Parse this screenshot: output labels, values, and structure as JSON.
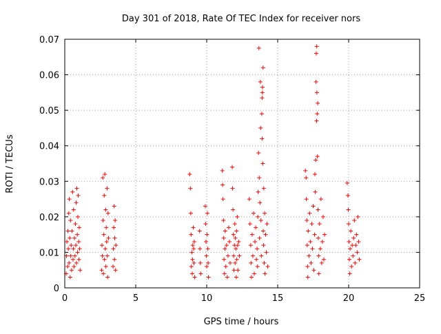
{
  "chart_data": {
    "type": "scatter",
    "title": "Day 301 of 2018, Rate Of TEC Index for receiver nors",
    "xlabel": "GPS time / hours",
    "ylabel": "ROTI / TECUs",
    "xlim": [
      0,
      25
    ],
    "ylim": [
      0,
      0.07
    ],
    "grid": true,
    "marker": "+",
    "x_ticks": [
      0,
      5,
      10,
      15,
      20,
      25
    ],
    "x_tick_labels": [
      "0",
      "5",
      "10",
      "15",
      "20",
      "25"
    ],
    "y_ticks": [
      0,
      0.01,
      0.02,
      0.03,
      0.04,
      0.05,
      0.06,
      0.07
    ],
    "y_tick_labels": [
      "0",
      "0.01",
      "0.02",
      "0.03",
      "0.04",
      "0.05",
      "0.06",
      "0.07"
    ],
    "series": [
      {
        "name": "ROTI",
        "color": "#ff0000",
        "points": [
          [
            0.1,
            0.004
          ],
          [
            0.12,
            0.009
          ],
          [
            0.15,
            0.013
          ],
          [
            0.2,
            0.006
          ],
          [
            0.22,
            0.016
          ],
          [
            0.25,
            0.011
          ],
          [
            0.28,
            0.021
          ],
          [
            0.3,
            0.007
          ],
          [
            0.32,
            0.025
          ],
          [
            0.35,
            0.014
          ],
          [
            0.38,
            0.003
          ],
          [
            0.4,
            0.019
          ],
          [
            0.42,
            0.009
          ],
          [
            0.45,
            0.012
          ],
          [
            0.48,
            0.005
          ],
          [
            0.5,
            0.016
          ],
          [
            0.55,
            0.027
          ],
          [
            0.58,
            0.008
          ],
          [
            0.6,
            0.011
          ],
          [
            0.62,
            0.022
          ],
          [
            0.65,
            0.006
          ],
          [
            0.68,
            0.014
          ],
          [
            0.72,
            0.009
          ],
          [
            0.75,
            0.018
          ],
          [
            0.78,
            0.012
          ],
          [
            0.8,
            0.024
          ],
          [
            0.82,
            0.007
          ],
          [
            0.85,
            0.028
          ],
          [
            0.88,
            0.015
          ],
          [
            0.9,
            0.01
          ],
          [
            0.92,
            0.02
          ],
          [
            0.95,
            0.026
          ],
          [
            0.98,
            0.013
          ],
          [
            1.0,
            0.008
          ],
          [
            1.02,
            0.017
          ],
          [
            1.05,
            0.011
          ],
          [
            1.08,
            0.005
          ],
          [
            2.6,
            0.005
          ],
          [
            2.62,
            0.012
          ],
          [
            2.65,
            0.009
          ],
          [
            2.68,
            0.031
          ],
          [
            2.7,
            0.019
          ],
          [
            2.72,
            0.004
          ],
          [
            2.75,
            0.015
          ],
          [
            2.78,
            0.026
          ],
          [
            2.8,
            0.008
          ],
          [
            2.82,
            0.032
          ],
          [
            2.85,
            0.011
          ],
          [
            2.88,
            0.022
          ],
          [
            2.9,
            0.006
          ],
          [
            2.92,
            0.017
          ],
          [
            2.95,
            0.013
          ],
          [
            2.98,
            0.028
          ],
          [
            3.0,
            0.009
          ],
          [
            3.02,
            0.003
          ],
          [
            3.05,
            0.021
          ],
          [
            3.08,
            0.014
          ],
          [
            3.4,
            0.006
          ],
          [
            3.42,
            0.011
          ],
          [
            3.45,
            0.017
          ],
          [
            3.48,
            0.023
          ],
          [
            3.5,
            0.008
          ],
          [
            3.52,
            0.014
          ],
          [
            3.55,
            0.019
          ],
          [
            3.58,
            0.005
          ],
          [
            3.6,
            0.012
          ],
          [
            8.8,
            0.032
          ],
          [
            8.85,
            0.028
          ],
          [
            8.88,
            0.021
          ],
          [
            8.9,
            0.015
          ],
          [
            8.92,
            0.006
          ],
          [
            8.95,
            0.01
          ],
          [
            8.98,
            0.004
          ],
          [
            9.0,
            0.008
          ],
          [
            9.02,
            0.012
          ],
          [
            9.05,
            0.017
          ],
          [
            9.08,
            0.011
          ],
          [
            9.1,
            0.007
          ],
          [
            9.12,
            0.013
          ],
          [
            9.15,
            0.003
          ],
          [
            9.5,
            0.016
          ],
          [
            9.52,
            0.011
          ],
          [
            9.55,
            0.007
          ],
          [
            9.58,
            0.004
          ],
          [
            9.9,
            0.023
          ],
          [
            9.92,
            0.018
          ],
          [
            9.95,
            0.013
          ],
          [
            9.98,
            0.009
          ],
          [
            10.0,
            0.006
          ],
          [
            10.02,
            0.015
          ],
          [
            10.05,
            0.021
          ],
          [
            10.08,
            0.011
          ],
          [
            10.1,
            0.007
          ],
          [
            10.12,
            0.003
          ],
          [
            11.1,
            0.033
          ],
          [
            11.12,
            0.029
          ],
          [
            11.15,
            0.025
          ],
          [
            11.18,
            0.019
          ],
          [
            11.2,
            0.014
          ],
          [
            11.22,
            0.008
          ],
          [
            11.25,
            0.004
          ],
          [
            11.28,
            0.011
          ],
          [
            11.3,
            0.016
          ],
          [
            11.35,
            0.006
          ],
          [
            11.4,
            0.012
          ],
          [
            11.45,
            0.003
          ],
          [
            11.5,
            0.009
          ],
          [
            11.55,
            0.017
          ],
          [
            11.6,
            0.013
          ],
          [
            11.65,
            0.007
          ],
          [
            11.8,
            0.034
          ],
          [
            11.82,
            0.028
          ],
          [
            11.85,
            0.022
          ],
          [
            11.88,
            0.015
          ],
          [
            11.9,
            0.009
          ],
          [
            11.92,
            0.005
          ],
          [
            11.95,
            0.012
          ],
          [
            11.98,
            0.018
          ],
          [
            12.0,
            0.007
          ],
          [
            12.02,
            0.014
          ],
          [
            12.05,
            0.011
          ],
          [
            12.08,
            0.003
          ],
          [
            12.1,
            0.016
          ],
          [
            12.12,
            0.008
          ],
          [
            12.15,
            0.02
          ],
          [
            12.18,
            0.012
          ],
          [
            12.2,
            0.005
          ],
          [
            12.25,
            0.013
          ],
          [
            12.3,
            0.009
          ],
          [
            13.0,
            0.025
          ],
          [
            13.05,
            0.018
          ],
          [
            13.1,
            0.012
          ],
          [
            13.12,
            0.007
          ],
          [
            13.15,
            0.003
          ],
          [
            13.2,
            0.015
          ],
          [
            13.25,
            0.009
          ],
          [
            13.3,
            0.021
          ],
          [
            13.35,
            0.004
          ],
          [
            13.4,
            0.013
          ],
          [
            13.45,
            0.017
          ],
          [
            13.5,
            0.008
          ],
          [
            13.55,
            0.011
          ],
          [
            13.58,
            0.006
          ],
          [
            13.6,
            0.02
          ],
          [
            13.62,
            0.027
          ],
          [
            13.65,
            0.038
          ],
          [
            13.7,
            0.031
          ],
          [
            13.72,
            0.014
          ],
          [
            13.75,
            0.024
          ],
          [
            13.78,
            0.058
          ],
          [
            13.8,
            0.045
          ],
          [
            13.82,
            0.019
          ],
          [
            13.85,
            0.009
          ],
          [
            13.88,
            0.049
          ],
          [
            13.9,
            0.042
          ],
          [
            13.92,
            0.055
          ],
          [
            13.95,
            0.035
          ],
          [
            13.97,
            0.062
          ],
          [
            13.98,
            0.016
          ],
          [
            14.0,
            0.012
          ],
          [
            14.02,
            0.028
          ],
          [
            14.05,
            0.007
          ],
          [
            14.08,
            0.021
          ],
          [
            14.1,
            0.004
          ],
          [
            14.15,
            0.015
          ],
          [
            14.2,
            0.01
          ],
          [
            14.25,
            0.018
          ],
          [
            14.3,
            0.006
          ],
          [
            13.68,
            0.0675
          ],
          [
            13.9,
            0.0535
          ],
          [
            13.93,
            0.0565
          ],
          [
            16.95,
            0.033
          ],
          [
            17.0,
            0.031
          ],
          [
            17.02,
            0.025
          ],
          [
            17.05,
            0.019
          ],
          [
            17.08,
            0.012
          ],
          [
            17.1,
            0.006
          ],
          [
            17.12,
            0.003
          ],
          [
            17.15,
            0.016
          ],
          [
            17.2,
            0.009
          ],
          [
            17.25,
            0.021
          ],
          [
            17.3,
            0.013
          ],
          [
            17.35,
            0.007
          ],
          [
            17.4,
            0.018
          ],
          [
            17.45,
            0.011
          ],
          [
            17.5,
            0.023
          ],
          [
            17.55,
            0.005
          ],
          [
            17.6,
            0.015
          ],
          [
            17.62,
            0.032
          ],
          [
            17.65,
            0.027
          ],
          [
            17.68,
            0.036
          ],
          [
            17.7,
            0.058
          ],
          [
            17.72,
            0.066
          ],
          [
            17.74,
            0.047
          ],
          [
            17.75,
            0.068
          ],
          [
            17.76,
            0.055
          ],
          [
            17.78,
            0.049
          ],
          [
            17.8,
            0.037
          ],
          [
            17.82,
            0.052
          ],
          [
            17.84,
            0.022
          ],
          [
            17.86,
            0.014
          ],
          [
            17.88,
            0.009
          ],
          [
            17.9,
            0.004
          ],
          [
            17.95,
            0.018
          ],
          [
            18.0,
            0.011
          ],
          [
            18.05,
            0.025
          ],
          [
            18.1,
            0.007
          ],
          [
            18.15,
            0.013
          ],
          [
            18.2,
            0.02
          ],
          [
            18.25,
            0.008
          ],
          [
            18.3,
            0.015
          ],
          [
            19.9,
            0.0295
          ],
          [
            19.95,
            0.026
          ],
          [
            19.98,
            0.022
          ],
          [
            20.0,
            0.018
          ],
          [
            20.02,
            0.013
          ],
          [
            20.05,
            0.008
          ],
          [
            20.08,
            0.004
          ],
          [
            20.1,
            0.011
          ],
          [
            20.15,
            0.016
          ],
          [
            20.2,
            0.006
          ],
          [
            20.25,
            0.012
          ],
          [
            20.3,
            0.009
          ],
          [
            20.35,
            0.014
          ],
          [
            20.4,
            0.019
          ],
          [
            20.45,
            0.007
          ],
          [
            20.5,
            0.012
          ],
          [
            20.55,
            0.015
          ],
          [
            20.6,
            0.01
          ],
          [
            20.65,
            0.02
          ],
          [
            20.7,
            0.013
          ],
          [
            20.75,
            0.008
          ]
        ]
      }
    ]
  }
}
